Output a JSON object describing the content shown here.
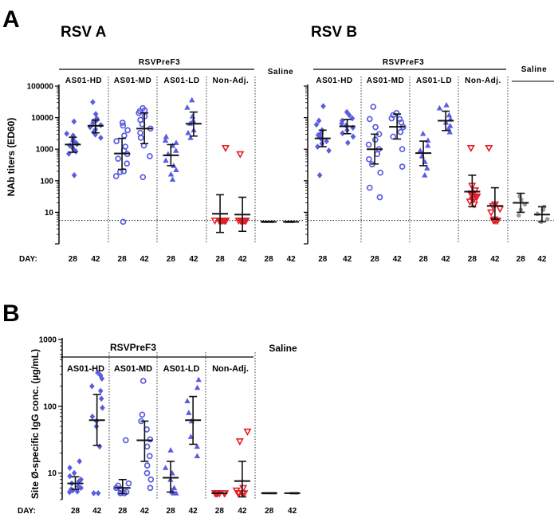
{
  "figure": {
    "panel_a_letter": "A",
    "panel_b_letter": "B",
    "day_prefix": "DAY:"
  },
  "colors": {
    "blue": "#5a5de0",
    "red": "#e41e26",
    "grey": "#9a9a9a",
    "black": "#111111"
  },
  "chart_data": [
    {
      "id": "rsv-a",
      "type": "scatter",
      "title": "RSV A",
      "ylabel": "NAb titers (ED60)",
      "yscale": "log",
      "ylim": [
        1,
        100000
      ],
      "yticks": [
        {
          "v": 10,
          "label": "10"
        },
        {
          "v": 100,
          "label": "100"
        },
        {
          "v": 1000,
          "label": "1000"
        },
        {
          "v": 10000,
          "label": "10000"
        },
        {
          "v": 100000,
          "label": "100000"
        }
      ],
      "bracket_label": "RSVPreF3",
      "saline_label": "Saline",
      "reference_line": 5.5,
      "groups": [
        {
          "name": "AS01-HD",
          "color": "blue",
          "marker": "diamond"
        },
        {
          "name": "AS01-MD",
          "color": "blue",
          "marker": "circle-open"
        },
        {
          "name": "AS01-LD",
          "color": "blue",
          "marker": "triangle"
        },
        {
          "name": "Non-Adj.",
          "color": "red",
          "marker": "tri-down-open"
        },
        {
          "name": "",
          "color": "black",
          "marker": "flat"
        }
      ],
      "days": [
        "28",
        "42"
      ],
      "series": [
        {
          "group": 0,
          "day": "28",
          "mean": 1400,
          "ci": [
            800,
            2400
          ],
          "points": [
            720,
            850,
            980,
            1150,
            1300,
            1450,
            1600,
            1800,
            2100,
            2700,
            3100,
            7500,
            150
          ]
        },
        {
          "group": 0,
          "day": "42",
          "mean": 5500,
          "ci": [
            3300,
            8400
          ],
          "points": [
            2300,
            2900,
            3500,
            4200,
            5000,
            5800,
            6700,
            7600,
            8500,
            9500,
            13000,
            31000
          ]
        },
        {
          "group": 1,
          "day": "28",
          "mean": 730,
          "ci": [
            230,
            2200
          ],
          "points": [
            5,
            140,
            190,
            350,
            500,
            700,
            900,
            1200,
            1800,
            2700,
            4000,
            5600,
            6900,
            200
          ]
        },
        {
          "group": 1,
          "day": "42",
          "mean": 4500,
          "ci": [
            1500,
            14000
          ],
          "points": [
            130,
            600,
            1300,
            2300,
            3300,
            4500,
            6200,
            8500,
            11000,
            14000,
            17000,
            20000,
            16000
          ]
        },
        {
          "group": 2,
          "day": "28",
          "mean": 640,
          "ci": [
            300,
            1400
          ],
          "points": [
            110,
            160,
            220,
            300,
            440,
            700,
            900,
            1300,
            1600,
            1900,
            2500
          ]
        },
        {
          "group": 2,
          "day": "42",
          "mean": 6400,
          "ci": [
            2600,
            15000
          ],
          "points": [
            2300,
            3300,
            4000,
            6500,
            8000,
            11000,
            21000,
            36000
          ]
        },
        {
          "group": 3,
          "day": "28",
          "mean": 9,
          "ci": [
            2.3,
            36
          ],
          "points": [
            5.5,
            5.5,
            5.5,
            5.5,
            5.5,
            5.5,
            5.5,
            5.5,
            5.5,
            1100
          ]
        },
        {
          "group": 3,
          "day": "42",
          "mean": 8.5,
          "ci": [
            2.5,
            30
          ],
          "points": [
            5.5,
            5.5,
            5.5,
            5.5,
            5.5,
            5.5,
            5.5,
            5.5,
            5.5,
            700
          ]
        },
        {
          "group": 4,
          "day": "28",
          "mean": 5,
          "ci": [
            5,
            5
          ],
          "points": [
            5,
            5,
            5,
            5,
            5
          ]
        },
        {
          "group": 4,
          "day": "42",
          "mean": 5,
          "ci": [
            5,
            5
          ],
          "points": [
            5,
            5,
            5,
            5,
            5
          ]
        }
      ]
    },
    {
      "id": "rsv-b",
      "type": "scatter",
      "title": "RSV B",
      "ylabel": "",
      "yscale": "log",
      "ylim": [
        1,
        100000
      ],
      "yticks": [],
      "bracket_label": "RSVPreF3",
      "saline_label": "Saline",
      "reference_line": 5.5,
      "groups": [
        {
          "name": "AS01-HD",
          "color": "blue",
          "marker": "diamond"
        },
        {
          "name": "AS01-MD",
          "color": "blue",
          "marker": "circle-open"
        },
        {
          "name": "AS01-LD",
          "color": "blue",
          "marker": "triangle"
        },
        {
          "name": "Non-Adj.",
          "color": "red",
          "marker": "tri-down-open"
        },
        {
          "name": "",
          "color": "grey",
          "marker": "circle-filled"
        }
      ],
      "days": [
        "28",
        "42"
      ],
      "series": [
        {
          "group": 0,
          "day": "28",
          "mean": 2200,
          "ci": [
            1200,
            4000
          ],
          "points": [
            150,
            900,
            1200,
            1500,
            1800,
            2100,
            2400,
            2800,
            3200,
            4000,
            6000,
            8000,
            23000
          ]
        },
        {
          "group": 0,
          "day": "42",
          "mean": 5300,
          "ci": [
            3100,
            8800
          ],
          "points": [
            1600,
            2500,
            3200,
            4000,
            4800,
            5600,
            6500,
            8000,
            9500,
            12000,
            15000
          ]
        },
        {
          "group": 1,
          "day": "28",
          "mean": 1000,
          "ci": [
            340,
            3000
          ],
          "points": [
            30,
            60,
            180,
            330,
            480,
            700,
            1000,
            1400,
            2000,
            3000,
            5000,
            9000,
            22000
          ]
        },
        {
          "group": 1,
          "day": "42",
          "mean": 5100,
          "ci": [
            2100,
            13000
          ],
          "points": [
            280,
            1000,
            2500,
            3500,
            5000,
            7000,
            9000,
            12000,
            14000,
            9500
          ]
        },
        {
          "group": 2,
          "day": "28",
          "mean": 750,
          "ci": [
            300,
            1800
          ],
          "points": [
            150,
            250,
            400,
            600,
            900,
            1300,
            1900,
            3100
          ]
        },
        {
          "group": 2,
          "day": "42",
          "mean": 8000,
          "ci": [
            3900,
            16000
          ],
          "points": [
            3500,
            4500,
            5500,
            7000,
            9000,
            12000,
            20000,
            25000
          ]
        },
        {
          "group": 3,
          "day": "28",
          "mean": 45,
          "ci": [
            15,
            150
          ],
          "points": [
            18,
            22,
            25,
            28,
            30,
            32,
            35,
            40,
            50,
            70,
            1100
          ]
        },
        {
          "group": 3,
          "day": "42",
          "mean": 16,
          "ci": [
            6,
            60
          ],
          "points": [
            5.5,
            5.5,
            5.5,
            5.5,
            6,
            10,
            13,
            16,
            18,
            1100
          ]
        },
        {
          "group": 4,
          "day": "28",
          "mean": 20,
          "ci": [
            10,
            40
          ],
          "points": [
            8,
            12,
            18,
            25,
            32
          ]
        },
        {
          "group": 4,
          "day": "42",
          "mean": 8.5,
          "ci": [
            5,
            15
          ],
          "points": [
            5,
            6,
            9,
            12,
            15
          ]
        }
      ]
    },
    {
      "id": "site-igg",
      "type": "scatter",
      "title": "",
      "ylabel": "Site Ø-specific IgG conc. (µg/mL)",
      "yscale": "log",
      "ylim": [
        4,
        1000
      ],
      "yticks": [
        {
          "v": 10,
          "label": "10"
        },
        {
          "v": 100,
          "label": "100"
        },
        {
          "v": 1000,
          "label": "1000"
        }
      ],
      "bracket_label": "RSVPreF3",
      "saline_label": "Saline",
      "reference_line": null,
      "groups": [
        {
          "name": "AS01-HD",
          "color": "blue",
          "marker": "diamond"
        },
        {
          "name": "AS01-MD",
          "color": "blue",
          "marker": "circle-open"
        },
        {
          "name": "AS01-LD",
          "color": "blue",
          "marker": "triangle"
        },
        {
          "name": "Non-Adj.",
          "color": "red",
          "marker": "tri-down-open"
        },
        {
          "name": "",
          "color": "black",
          "marker": "flat"
        }
      ],
      "days": [
        "28",
        "42"
      ],
      "series": [
        {
          "group": 0,
          "day": "28",
          "mean": 7,
          "ci": [
            5.7,
            8.8
          ],
          "points": [
            5.2,
            5.3,
            5.5,
            5.7,
            6,
            6.3,
            7,
            7.5,
            8,
            9,
            10,
            12,
            15
          ]
        },
        {
          "group": 0,
          "day": "42",
          "mean": 62,
          "ci": [
            26,
            150
          ],
          "points": [
            5,
            5,
            25,
            50,
            70,
            95,
            130,
            170,
            200,
            260,
            290,
            320,
            60
          ]
        },
        {
          "group": 1,
          "day": "28",
          "mean": 6,
          "ci": [
            4.9,
            8
          ],
          "points": [
            5,
            5,
            5.2,
            5.5,
            5.8,
            6,
            6.5,
            7,
            31
          ]
        },
        {
          "group": 1,
          "day": "42",
          "mean": 31,
          "ci": [
            15,
            60
          ],
          "points": [
            6,
            8,
            10,
            13,
            18,
            25,
            32,
            45,
            60,
            75,
            240
          ]
        },
        {
          "group": 2,
          "day": "28",
          "mean": 8.5,
          "ci": [
            5.2,
            15
          ],
          "points": [
            5,
            5,
            5.2,
            5.5,
            6,
            8,
            10,
            12,
            22
          ]
        },
        {
          "group": 2,
          "day": "42",
          "mean": 62,
          "ci": [
            27,
            140
          ],
          "points": [
            18,
            25,
            35,
            60,
            80,
            120,
            190,
            250
          ]
        },
        {
          "group": 3,
          "day": "28",
          "mean": 5,
          "ci": [
            5,
            5
          ],
          "points": [
            5,
            5,
            5,
            5,
            5,
            5,
            5,
            5
          ]
        },
        {
          "group": 3,
          "day": "42",
          "mean": 7.6,
          "ci": [
            4.4,
            15
          ],
          "points": [
            5,
            5,
            5,
            5,
            5,
            5.5,
            6,
            30,
            42
          ]
        },
        {
          "group": 4,
          "day": "28",
          "mean": 5,
          "ci": [
            5,
            5
          ],
          "points": [
            5,
            5,
            5,
            5,
            5
          ]
        },
        {
          "group": 4,
          "day": "42",
          "mean": 5,
          "ci": [
            5,
            5
          ],
          "points": [
            5,
            5,
            5,
            5,
            5
          ]
        }
      ]
    }
  ]
}
